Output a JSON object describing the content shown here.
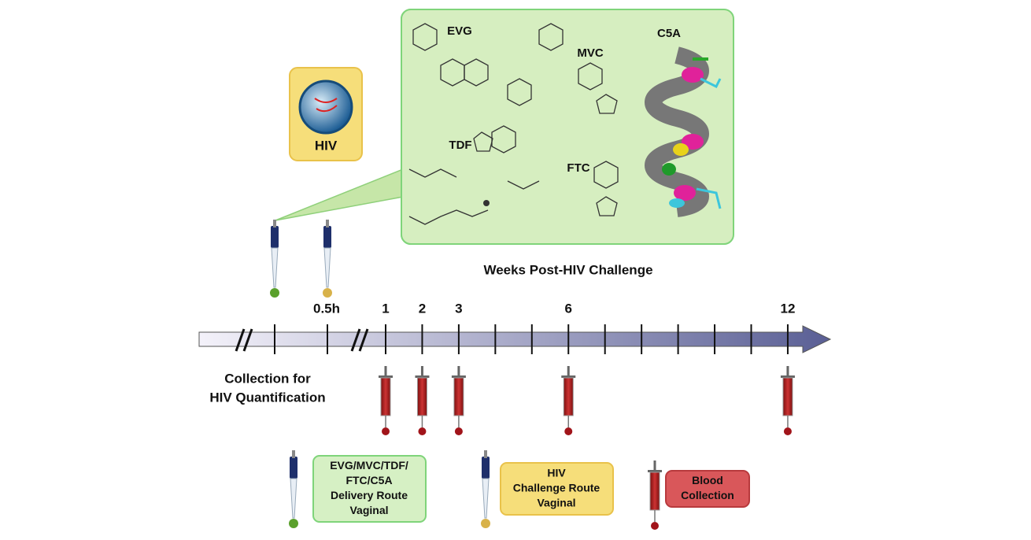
{
  "inset": {
    "drugs": [
      "EVG",
      "MVC",
      "C5A",
      "TDF",
      "FTC"
    ],
    "virus": "HIV"
  },
  "timeline": {
    "title": "Weeks Post-HIV Challenge",
    "labels": [
      "0.5h",
      "1",
      "2",
      "3",
      "6",
      "12"
    ]
  },
  "collection": [
    "Collection for",
    "HIV Quantification"
  ],
  "legend": [
    {
      "lines": [
        "EVG/MVC/TDF/",
        "FTC/C5A",
        "Delivery Route",
        "Vaginal"
      ]
    },
    {
      "lines": [
        "HIV",
        "Challenge Route",
        "Vaginal"
      ]
    },
    {
      "lines": [
        "Blood",
        "Collection"
      ]
    }
  ]
}
